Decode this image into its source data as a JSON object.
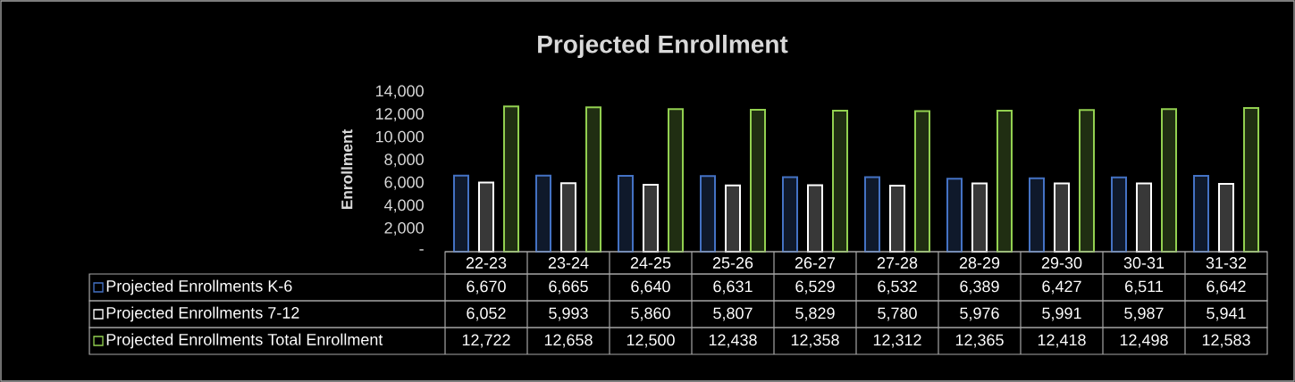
{
  "chart_data": {
    "type": "bar",
    "title": "Projected Enrollment",
    "ylabel": "Enrollment",
    "categories": [
      "22-23",
      "23-24",
      "24-25",
      "25-26",
      "26-27",
      "27-28",
      "28-29",
      "29-30",
      "30-31",
      "31-32"
    ],
    "series": [
      {
        "name": "Projected Enrollments K-6",
        "color": "#4472c4",
        "values": [
          6670,
          6665,
          6640,
          6631,
          6529,
          6532,
          6389,
          6427,
          6511,
          6642
        ],
        "value_labels": [
          "6,670",
          "6,665",
          "6,640",
          "6,631",
          "6,529",
          "6,532",
          "6,389",
          "6,427",
          "6,511",
          "6,642"
        ]
      },
      {
        "name": "Projected Enrollments 7-12",
        "color": "#ffffff",
        "values": [
          6052,
          5993,
          5860,
          5807,
          5829,
          5780,
          5976,
          5991,
          5987,
          5941
        ],
        "value_labels": [
          "6,052",
          "5,993",
          "5,860",
          "5,807",
          "5,829",
          "5,780",
          "5,976",
          "5,991",
          "5,987",
          "5,941"
        ]
      },
      {
        "name": "Projected Enrollments Total Enrollment",
        "color": "#92d050",
        "values": [
          12722,
          12658,
          12500,
          12438,
          12358,
          12312,
          12365,
          12418,
          12498,
          12583
        ],
        "value_labels": [
          "12,722",
          "12,658",
          "12,500",
          "12,438",
          "12,358",
          "12,312",
          "12,365",
          "12,418",
          "12,498",
          "12,583"
        ]
      }
    ],
    "ylim": [
      0,
      14000
    ],
    "yticks": [
      {
        "value": 0,
        "label": "-"
      },
      {
        "value": 2000,
        "label": "2,000"
      },
      {
        "value": 4000,
        "label": "4,000"
      },
      {
        "value": 6000,
        "label": "6,000"
      },
      {
        "value": 8000,
        "label": "8,000"
      },
      {
        "value": 10000,
        "label": "10,000"
      },
      {
        "value": 12000,
        "label": "12,000"
      },
      {
        "value": 14000,
        "label": "14,000"
      }
    ],
    "legend": "bottom",
    "grid": false
  }
}
